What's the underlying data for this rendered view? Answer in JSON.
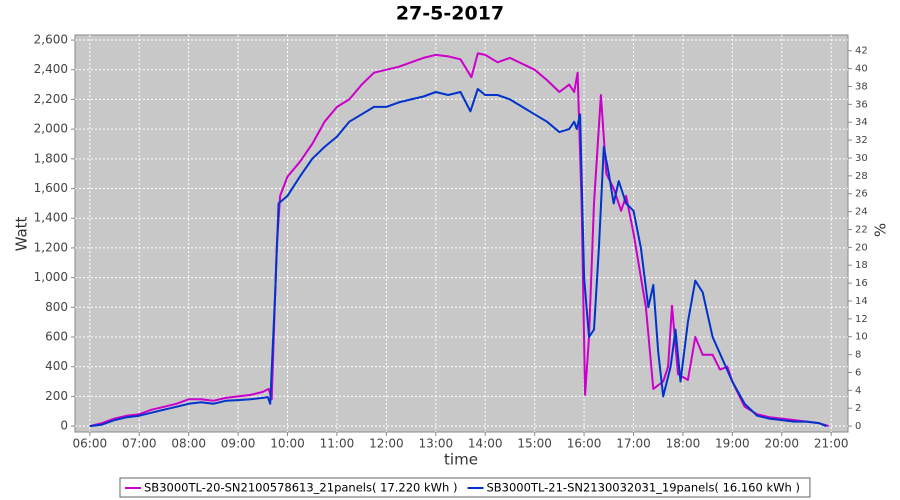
{
  "chart_data": {
    "type": "line",
    "title": "27-5-2017",
    "x_label": "time",
    "y_label": "Watt",
    "y2_label": "%",
    "xlim": [
      5.7,
      21.34
    ],
    "ylim": [
      -40,
      2634
    ],
    "y2lim": [
      -0.66,
      43.76
    ],
    "grid": true,
    "legend": "bottom",
    "xticks": [
      {
        "value": 6,
        "label": "06:00"
      },
      {
        "value": 7,
        "label": "07:00"
      },
      {
        "value": 8,
        "label": "08:00"
      },
      {
        "value": 9,
        "label": "09:00"
      },
      {
        "value": 10,
        "label": "10:00"
      },
      {
        "value": 11,
        "label": "11:00"
      },
      {
        "value": 12,
        "label": "12:00"
      },
      {
        "value": 13,
        "label": "13:00"
      },
      {
        "value": 14,
        "label": "14:00"
      },
      {
        "value": 15,
        "label": "15:00"
      },
      {
        "value": 16,
        "label": "16:00"
      },
      {
        "value": 17,
        "label": "17:00"
      },
      {
        "value": 18,
        "label": "18:00"
      },
      {
        "value": 19,
        "label": "19:00"
      },
      {
        "value": 20,
        "label": "20:00"
      },
      {
        "value": 21,
        "label": "21:00"
      }
    ],
    "yticks": [
      0,
      200,
      400,
      600,
      800,
      {
        "value": 1000,
        "label": "1,000"
      },
      {
        "value": 1200,
        "label": "1,200"
      },
      {
        "value": 1400,
        "label": "1,400"
      },
      {
        "value": 1600,
        "label": "1,600"
      },
      {
        "value": 1800,
        "label": "1,800"
      },
      {
        "value": 2000,
        "label": "2,000"
      },
      {
        "value": 2200,
        "label": "2,200"
      },
      {
        "value": 2400,
        "label": "2,400"
      },
      {
        "value": 2600,
        "label": "2,600"
      }
    ],
    "y2ticks": [
      0,
      2,
      4,
      6,
      8,
      10,
      12,
      14,
      16,
      18,
      20,
      22,
      24,
      26,
      28,
      30,
      32,
      34,
      36,
      38,
      40,
      42
    ],
    "series": [
      {
        "name": "SB3000TL-20-SN2100578613_21panels( 17.220 kWh )",
        "color": "#cc00cc",
        "x": [
          6.0,
          6.25,
          6.5,
          6.75,
          7.0,
          7.25,
          7.5,
          7.75,
          8.0,
          8.25,
          8.5,
          8.75,
          9.0,
          9.25,
          9.5,
          9.62,
          9.68,
          9.78,
          9.85,
          10.0,
          10.25,
          10.5,
          10.75,
          11.0,
          11.25,
          11.5,
          11.75,
          12.0,
          12.25,
          12.5,
          12.75,
          13.0,
          13.25,
          13.5,
          13.72,
          13.85,
          14.0,
          14.25,
          14.5,
          14.75,
          15.0,
          15.25,
          15.5,
          15.7,
          15.8,
          15.87,
          15.95,
          16.02,
          16.1,
          16.2,
          16.34,
          16.45,
          16.6,
          16.75,
          16.85,
          17.0,
          17.25,
          17.4,
          17.6,
          17.7,
          17.78,
          17.9,
          18.1,
          18.25,
          18.4,
          18.6,
          18.75,
          18.9,
          19.0,
          19.25,
          19.5,
          19.75,
          20.0,
          20.25,
          20.5,
          20.75,
          20.95
        ],
        "values": [
          0,
          20,
          50,
          70,
          80,
          110,
          130,
          150,
          180,
          180,
          170,
          190,
          200,
          210,
          230,
          250,
          180,
          1200,
          1550,
          1680,
          1780,
          1900,
          2050,
          2150,
          2200,
          2300,
          2380,
          2400,
          2420,
          2450,
          2480,
          2500,
          2490,
          2470,
          2350,
          2510,
          2500,
          2450,
          2480,
          2440,
          2400,
          2330,
          2250,
          2300,
          2250,
          2380,
          1500,
          210,
          600,
          1500,
          2230,
          1700,
          1600,
          1450,
          1550,
          1300,
          800,
          250,
          300,
          400,
          810,
          350,
          310,
          600,
          480,
          480,
          380,
          400,
          300,
          130,
          80,
          60,
          50,
          40,
          30,
          20,
          0
        ]
      },
      {
        "name": "SB3000TL-21-SN2130032031_19panels( 16.160 kWh )",
        "color": "#0033cc",
        "x": [
          6.0,
          6.25,
          6.5,
          6.75,
          7.0,
          7.25,
          7.5,
          7.75,
          8.0,
          8.25,
          8.5,
          8.75,
          9.0,
          9.25,
          9.5,
          9.6,
          9.65,
          9.75,
          9.82,
          10.0,
          10.25,
          10.5,
          10.75,
          11.0,
          11.25,
          11.5,
          11.75,
          12.0,
          12.25,
          12.5,
          12.75,
          13.0,
          13.25,
          13.5,
          13.7,
          13.85,
          14.0,
          14.25,
          14.5,
          14.75,
          15.0,
          15.25,
          15.5,
          15.7,
          15.8,
          15.85,
          15.92,
          16.0,
          16.1,
          16.2,
          16.3,
          16.4,
          16.5,
          16.6,
          16.7,
          16.85,
          17.0,
          17.15,
          17.3,
          17.4,
          17.5,
          17.6,
          17.75,
          17.85,
          17.95,
          18.1,
          18.25,
          18.4,
          18.6,
          18.8,
          19.0,
          19.25,
          19.5,
          19.75,
          20.0,
          20.25,
          20.5,
          20.75,
          20.9
        ],
        "values": [
          0,
          10,
          40,
          60,
          70,
          90,
          110,
          130,
          150,
          160,
          150,
          170,
          175,
          180,
          190,
          195,
          150,
          900,
          1500,
          1550,
          1680,
          1800,
          1880,
          1950,
          2050,
          2100,
          2150,
          2150,
          2180,
          2200,
          2220,
          2250,
          2230,
          2250,
          2120,
          2270,
          2230,
          2230,
          2200,
          2150,
          2100,
          2050,
          1980,
          2000,
          2050,
          2000,
          2100,
          1000,
          600,
          650,
          1200,
          1880,
          1700,
          1500,
          1650,
          1500,
          1450,
          1200,
          800,
          950,
          500,
          200,
          400,
          650,
          300,
          700,
          980,
          900,
          600,
          450,
          300,
          150,
          70,
          50,
          40,
          30,
          30,
          20,
          0
        ]
      }
    ]
  }
}
